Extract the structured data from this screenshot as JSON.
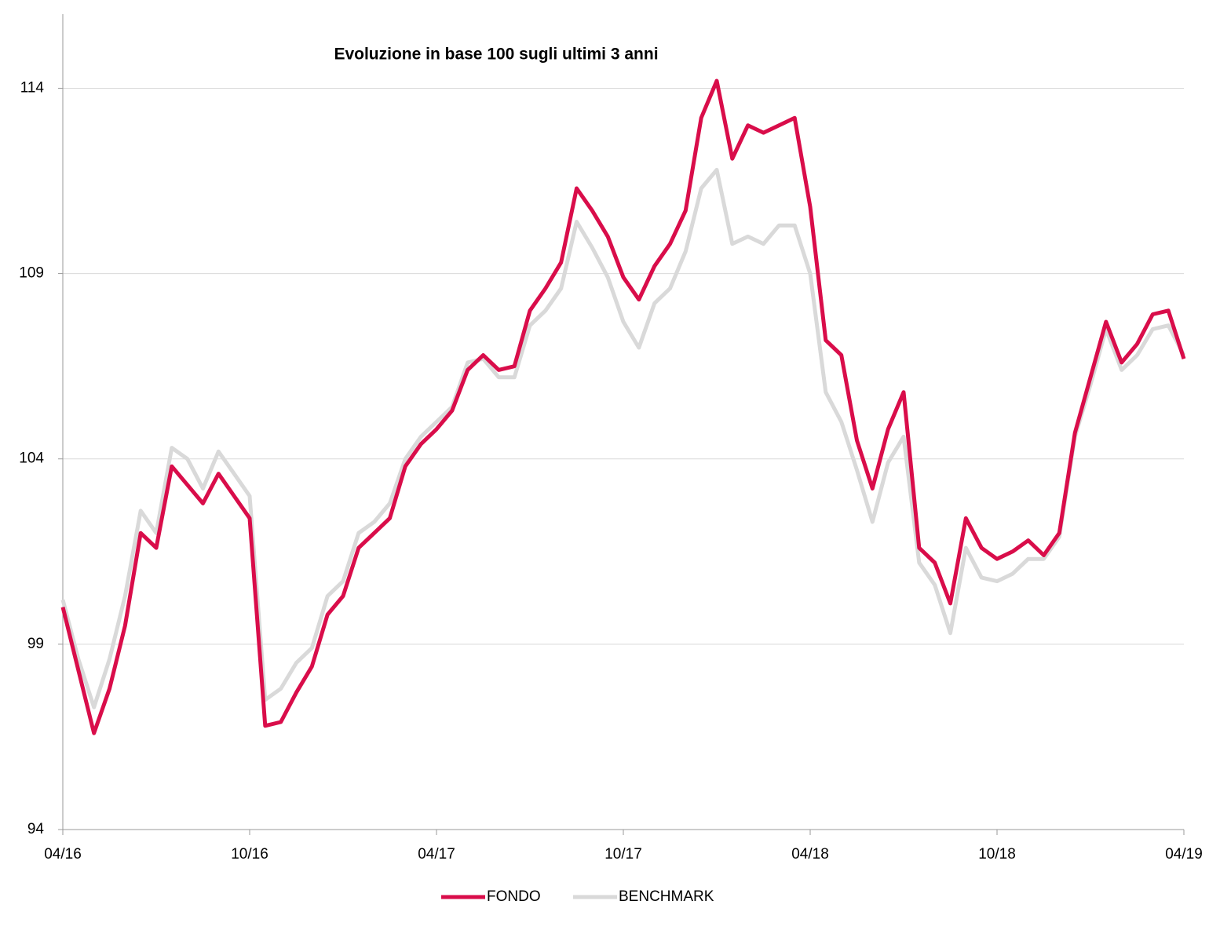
{
  "chart_data": {
    "type": "line",
    "title": "Evoluzione in base 100 sugli ultimi 3 anni",
    "x": [
      0,
      0.5,
      1,
      1.5,
      2,
      2.5,
      3,
      3.5,
      4,
      4.5,
      5,
      5.5,
      6,
      6.5,
      7,
      7.5,
      8,
      8.5,
      9,
      9.5,
      10,
      10.5,
      11,
      11.5,
      12,
      12.5,
      13,
      13.5,
      14,
      14.5,
      15,
      15.5,
      16,
      16.5,
      17,
      17.5,
      18,
      18.5,
      19,
      19.5,
      20,
      20.5,
      21,
      21.5,
      22,
      22.5,
      23,
      23.5,
      24,
      24.5,
      25,
      25.5,
      26,
      26.5,
      27,
      27.5,
      28,
      28.5,
      29,
      29.5,
      30,
      30.5,
      31,
      31.5,
      32,
      32.5,
      33,
      33.5,
      34,
      34.5,
      35,
      35.5,
      36
    ],
    "series": [
      {
        "name": "FONDO",
        "color": "#d90d4a",
        "values": [
          100,
          98.3,
          96.6,
          97.8,
          99.5,
          102,
          101.6,
          103.8,
          103.3,
          102.8,
          103.6,
          103,
          102.4,
          96.8,
          96.9,
          97.7,
          98.4,
          99.8,
          100.3,
          101.6,
          102,
          102.4,
          103.8,
          104.4,
          104.8,
          105.3,
          106.4,
          106.8,
          106.4,
          106.5,
          108,
          108.6,
          109.3,
          111.3,
          110.7,
          110,
          108.9,
          108.3,
          109.2,
          109.8,
          110.7,
          113.2,
          114.2,
          112.1,
          113,
          112.8,
          113,
          113.2,
          110.8,
          107.2,
          106.8,
          104.5,
          103.2,
          104.8,
          105.8,
          101.6,
          101.2,
          100.1,
          102.4,
          101.6,
          101.3,
          101.5,
          101.8,
          101.4,
          102,
          104.7,
          106.2,
          107.7,
          106.6,
          107.1,
          107.9,
          108,
          106.7
        ]
      },
      {
        "name": "BENCHMARK",
        "color": "#d9d9d9",
        "values": [
          100.2,
          98.6,
          97.3,
          98.6,
          100.3,
          102.6,
          102,
          104.3,
          104,
          103.2,
          104.2,
          103.6,
          103,
          97.5,
          97.8,
          98.5,
          98.9,
          100.3,
          100.7,
          102,
          102.3,
          102.8,
          104,
          104.6,
          105,
          105.4,
          106.6,
          106.7,
          106.2,
          106.2,
          107.6,
          108,
          108.6,
          110.4,
          109.7,
          108.9,
          107.7,
          107,
          108.2,
          108.6,
          109.6,
          111.3,
          111.8,
          109.8,
          110,
          109.8,
          110.3,
          110.3,
          109,
          105.8,
          105,
          103.7,
          102.3,
          103.9,
          104.6,
          101.2,
          100.6,
          99.3,
          101.6,
          100.8,
          100.7,
          100.9,
          101.3,
          101.3,
          101.9,
          104.6,
          106,
          107.5,
          106.4,
          106.8,
          107.5,
          107.6,
          106.8
        ]
      }
    ],
    "xlim": [
      0,
      36
    ],
    "xticks": [
      {
        "value": 0,
        "label": "04/16"
      },
      {
        "value": 6,
        "label": "10/16"
      },
      {
        "value": 12,
        "label": "04/17"
      },
      {
        "value": 18,
        "label": "10/17"
      },
      {
        "value": 24,
        "label": "04/18"
      },
      {
        "value": 30,
        "label": "10/18"
      },
      {
        "value": 36,
        "label": "04/19"
      }
    ],
    "ylim": [
      94,
      116
    ],
    "yticks": [
      94,
      99,
      104,
      109,
      114
    ],
    "grid": true,
    "legend": "bottom"
  }
}
